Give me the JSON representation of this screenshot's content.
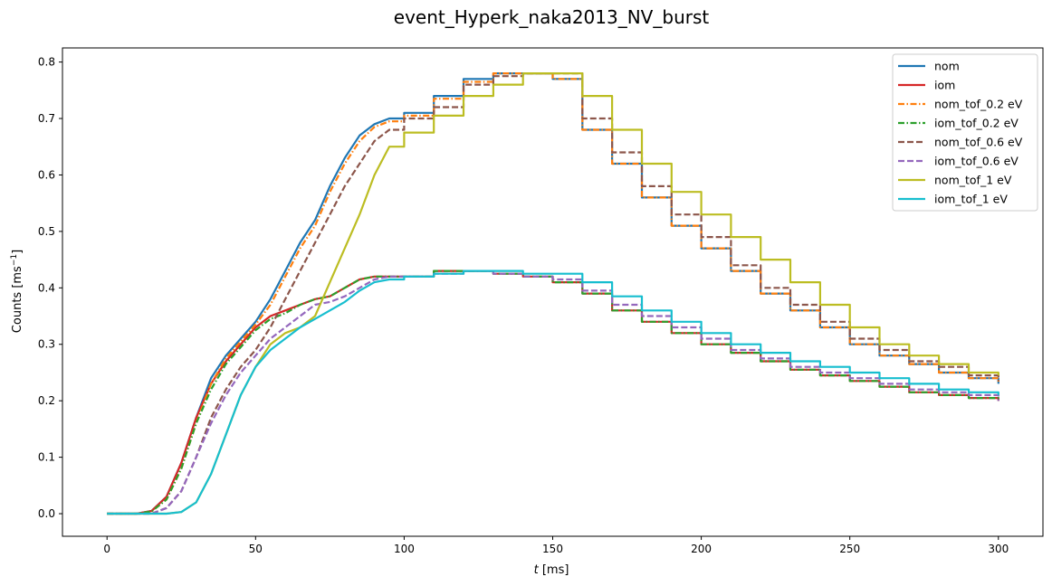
{
  "chart_data": {
    "type": "line",
    "title": "event_Hyperk_naka2013_NV_burst",
    "xlabel_italic": "t",
    "xlabel_unit": "[ms]",
    "ylabel_main": "Counts [ms",
    "ylabel_exp": "−1",
    "ylabel_close": "]",
    "xlim": [
      -15,
      315
    ],
    "ylim": [
      -0.04,
      0.825
    ],
    "xticks": [
      0,
      50,
      100,
      150,
      200,
      250,
      300
    ],
    "yticks": [
      0.0,
      0.1,
      0.2,
      0.3,
      0.4,
      0.5,
      0.6,
      0.7,
      0.8
    ],
    "legend_position": "top-right",
    "x": [
      0,
      10,
      15,
      20,
      25,
      30,
      35,
      40,
      45,
      50,
      55,
      60,
      65,
      70,
      75,
      80,
      85,
      90,
      95,
      100,
      110,
      120,
      130,
      140,
      150,
      160,
      170,
      180,
      190,
      200,
      210,
      220,
      230,
      240,
      250,
      260,
      270,
      280,
      290,
      300
    ],
    "series": [
      {
        "name": "nom",
        "color": "#1f77b4",
        "dash": "solid",
        "stepped": true,
        "values": [
          0.0,
          0.0,
          0.005,
          0.03,
          0.09,
          0.17,
          0.24,
          0.28,
          0.31,
          0.34,
          0.38,
          0.43,
          0.48,
          0.52,
          0.58,
          0.63,
          0.67,
          0.69,
          0.7,
          0.71,
          0.74,
          0.77,
          0.78,
          0.78,
          0.77,
          0.68,
          0.62,
          0.56,
          0.51,
          0.47,
          0.43,
          0.39,
          0.36,
          0.33,
          0.3,
          0.28,
          0.265,
          0.25,
          0.24,
          0.23
        ]
      },
      {
        "name": "iom",
        "color": "#d62728",
        "dash": "solid",
        "stepped": true,
        "values": [
          0.0,
          0.0,
          0.005,
          0.03,
          0.09,
          0.17,
          0.23,
          0.27,
          0.3,
          0.33,
          0.35,
          0.36,
          0.37,
          0.38,
          0.385,
          0.4,
          0.415,
          0.42,
          0.42,
          0.42,
          0.43,
          0.43,
          0.425,
          0.42,
          0.41,
          0.39,
          0.36,
          0.34,
          0.32,
          0.3,
          0.285,
          0.27,
          0.255,
          0.245,
          0.235,
          0.225,
          0.215,
          0.21,
          0.205,
          0.2
        ]
      },
      {
        "name": "nom_tof_0.2 eV",
        "color": "#ff7f0e",
        "dash": "dashdot",
        "stepped": true,
        "values": [
          0.0,
          0.0,
          0.004,
          0.025,
          0.08,
          0.16,
          0.23,
          0.275,
          0.305,
          0.335,
          0.37,
          0.42,
          0.47,
          0.51,
          0.57,
          0.62,
          0.66,
          0.685,
          0.695,
          0.705,
          0.735,
          0.765,
          0.78,
          0.78,
          0.77,
          0.68,
          0.62,
          0.56,
          0.51,
          0.47,
          0.43,
          0.39,
          0.36,
          0.33,
          0.3,
          0.28,
          0.265,
          0.25,
          0.24,
          0.23
        ]
      },
      {
        "name": "iom_tof_0.2 eV",
        "color": "#2ca02c",
        "dash": "dashdot",
        "stepped": true,
        "values": [
          0.0,
          0.0,
          0.004,
          0.025,
          0.08,
          0.16,
          0.22,
          0.265,
          0.295,
          0.325,
          0.345,
          0.355,
          0.37,
          0.38,
          0.385,
          0.4,
          0.415,
          0.42,
          0.42,
          0.42,
          0.43,
          0.43,
          0.425,
          0.42,
          0.41,
          0.39,
          0.36,
          0.34,
          0.32,
          0.3,
          0.285,
          0.27,
          0.255,
          0.245,
          0.235,
          0.225,
          0.215,
          0.21,
          0.205,
          0.2
        ]
      },
      {
        "name": "nom_tof_0.6 eV",
        "color": "#8c564b",
        "dash": "dashed",
        "stepped": true,
        "values": [
          0.0,
          0.0,
          0.0,
          0.01,
          0.04,
          0.1,
          0.17,
          0.22,
          0.26,
          0.29,
          0.33,
          0.38,
          0.43,
          0.48,
          0.53,
          0.58,
          0.62,
          0.66,
          0.68,
          0.7,
          0.72,
          0.76,
          0.775,
          0.78,
          0.78,
          0.7,
          0.64,
          0.58,
          0.53,
          0.49,
          0.44,
          0.4,
          0.37,
          0.34,
          0.31,
          0.29,
          0.27,
          0.26,
          0.245,
          0.235
        ]
      },
      {
        "name": "iom_tof_0.6 eV",
        "color": "#9467bd",
        "dash": "dashed",
        "stepped": true,
        "values": [
          0.0,
          0.0,
          0.0,
          0.01,
          0.04,
          0.1,
          0.16,
          0.21,
          0.25,
          0.28,
          0.31,
          0.33,
          0.35,
          0.37,
          0.375,
          0.385,
          0.4,
          0.415,
          0.42,
          0.42,
          0.425,
          0.43,
          0.425,
          0.42,
          0.415,
          0.395,
          0.37,
          0.35,
          0.33,
          0.31,
          0.29,
          0.275,
          0.26,
          0.25,
          0.24,
          0.23,
          0.22,
          0.215,
          0.21,
          0.2
        ]
      },
      {
        "name": "nom_tof_1 eV",
        "color": "#bcbd22",
        "dash": "solid",
        "stepped": true,
        "values": [
          0.0,
          0.0,
          0.0,
          0.0,
          0.003,
          0.02,
          0.07,
          0.14,
          0.21,
          0.26,
          0.3,
          0.32,
          0.33,
          0.35,
          0.41,
          0.47,
          0.53,
          0.6,
          0.65,
          0.675,
          0.705,
          0.74,
          0.76,
          0.78,
          0.78,
          0.74,
          0.68,
          0.62,
          0.57,
          0.53,
          0.49,
          0.45,
          0.41,
          0.37,
          0.33,
          0.3,
          0.28,
          0.265,
          0.25,
          0.245
        ]
      },
      {
        "name": "iom_tof_1 eV",
        "color": "#17becf",
        "dash": "solid",
        "stepped": true,
        "values": [
          0.0,
          0.0,
          0.0,
          0.0,
          0.003,
          0.02,
          0.07,
          0.14,
          0.21,
          0.26,
          0.29,
          0.31,
          0.33,
          0.345,
          0.36,
          0.375,
          0.395,
          0.41,
          0.415,
          0.42,
          0.425,
          0.43,
          0.43,
          0.425,
          0.425,
          0.41,
          0.385,
          0.36,
          0.34,
          0.32,
          0.3,
          0.285,
          0.27,
          0.26,
          0.25,
          0.24,
          0.23,
          0.22,
          0.215,
          0.21
        ]
      }
    ]
  }
}
